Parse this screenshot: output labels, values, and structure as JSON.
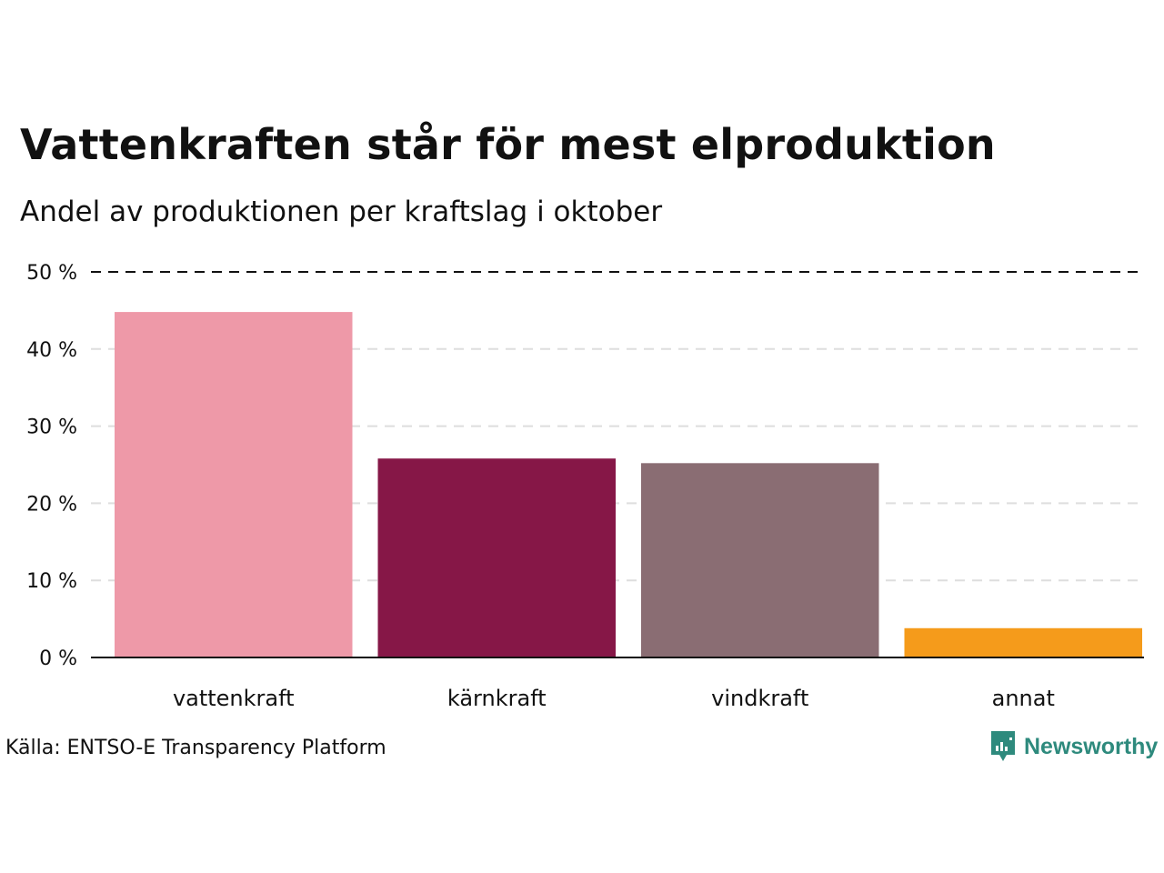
{
  "title": "Vattenkraften står för mest elproduktion",
  "subtitle": "Andel av produktionen per kraftslag i oktober",
  "source": "Källa: ENTSO-E Transparency Platform",
  "brand": {
    "name": "Newsworthy",
    "logo_icon": "newsworthy-logo-icon",
    "color": "#2e8a7d"
  },
  "chart_data": {
    "type": "bar",
    "title": "Vattenkraften står för mest elproduktion",
    "subtitle": "Andel av produktionen per kraftslag i oktober",
    "xlabel": "",
    "ylabel": "",
    "categories": [
      "vattenkraft",
      "kärnkraft",
      "vindkraft",
      "annat"
    ],
    "values": [
      44.8,
      25.8,
      25.2,
      3.8
    ],
    "colors": [
      "#ee99a8",
      "#861747",
      "#8a6d73",
      "#f59b1b"
    ],
    "ylim": [
      0,
      50
    ],
    "yticks": [
      0,
      10,
      20,
      30,
      40,
      50
    ],
    "ytick_labels": [
      "0 %",
      "10 %",
      "20 %",
      "30 %",
      "40 %",
      "50 %"
    ],
    "grid": true,
    "legend": "none"
  }
}
